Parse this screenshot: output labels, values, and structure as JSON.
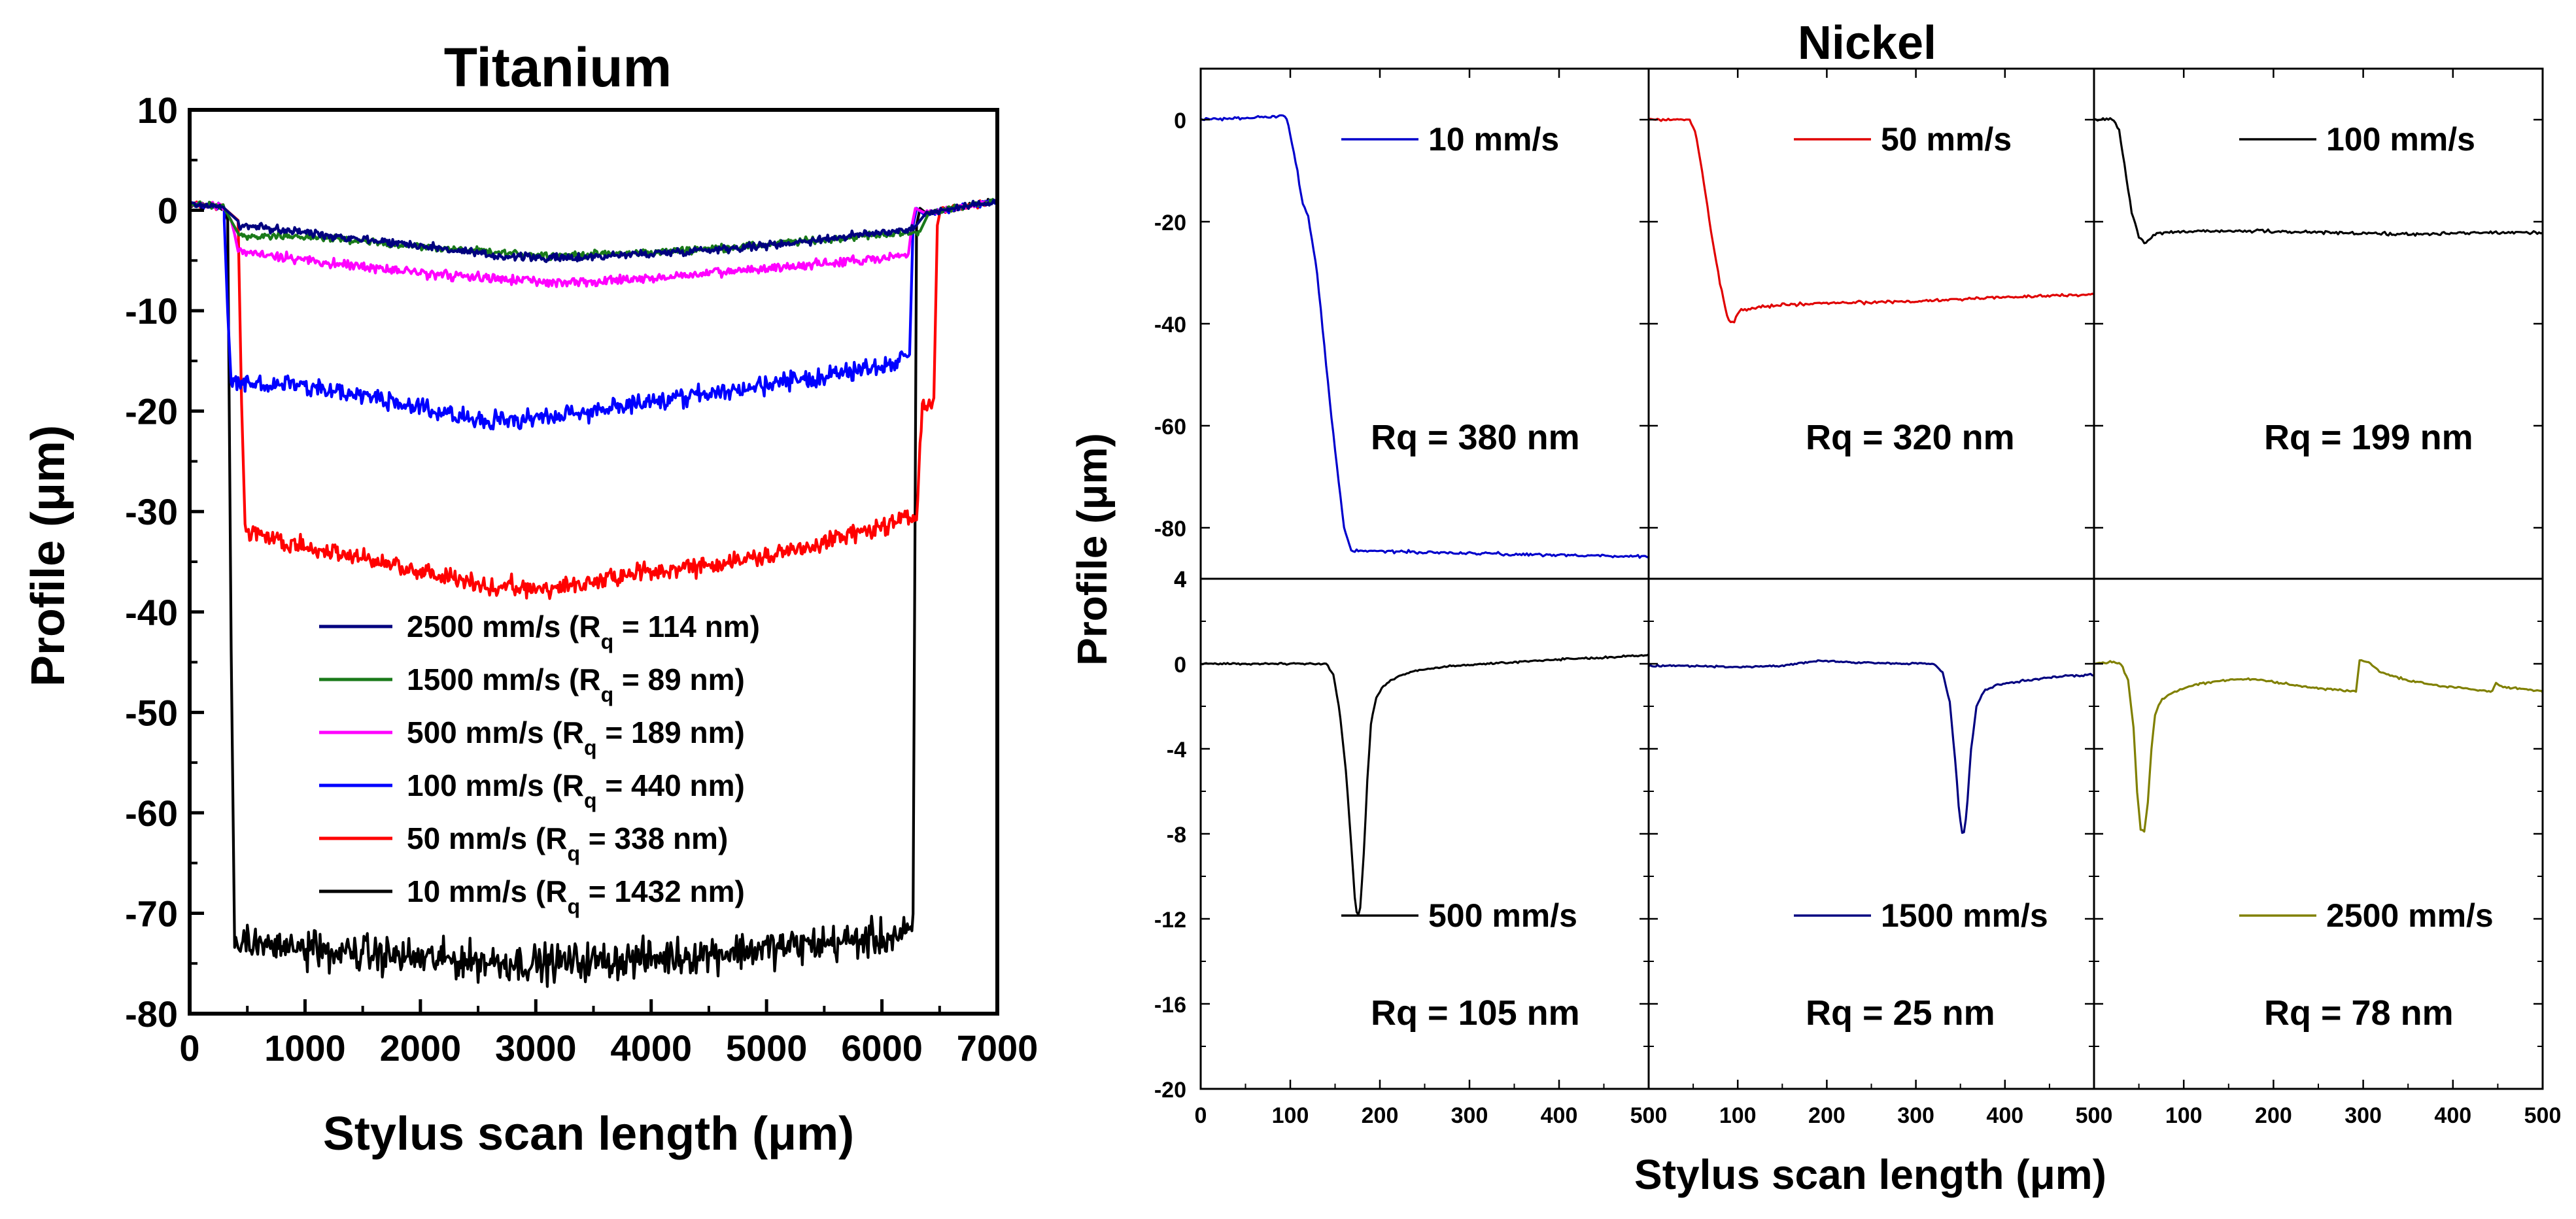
{
  "chart_data": [
    {
      "type": "line",
      "title": "Titanium",
      "xlabel": "Stylus scan length (μm)",
      "ylabel": "Profile (μm)",
      "xlim": [
        0,
        7000
      ],
      "ylim": [
        -80,
        10
      ],
      "xticks": [
        "0",
        "1000",
        "2000",
        "3000",
        "4000",
        "5000",
        "6000",
        "7000"
      ],
      "yticks": [
        "10",
        "0",
        "-10",
        "-20",
        "-30",
        "-40",
        "-50",
        "-60",
        "-70",
        "-80"
      ],
      "legend": "center",
      "series": [
        {
          "name": "2500 mm/s (R_q = 114 nm)",
          "label": "2500 mm/s",
          "rq": "114 nm",
          "color": "#00007f",
          "edge": [
            420,
            6280
          ],
          "shape": [
            [
              0,
              0.5
            ],
            [
              300,
              0.0
            ],
            [
              380,
              -1.5
            ],
            [
              420,
              -1.5
            ],
            [
              1000,
              -2.2
            ],
            [
              2000,
              -3.5
            ],
            [
              2600,
              -4.5
            ],
            [
              3200,
              -4.8
            ],
            [
              4000,
              -4.3
            ],
            [
              5000,
              -3.5
            ],
            [
              6000,
              -2.2
            ],
            [
              6280,
              -1.8
            ],
            [
              6320,
              0.5
            ],
            [
              7000,
              1.2
            ]
          ],
          "noise": 0.35
        },
        {
          "name": "1500 mm/s (R_q = 89 nm)",
          "label": "1500 mm/s",
          "rq": "89 nm",
          "color": "#1a7a1a",
          "edge": [
            420,
            6330
          ],
          "shape": [
            [
              0,
              0.3
            ],
            [
              330,
              -0.2
            ],
            [
              380,
              -2.0
            ],
            [
              430,
              -2.5
            ],
            [
              1000,
              -2.6
            ],
            [
              2000,
              -3.6
            ],
            [
              2600,
              -4.2
            ],
            [
              3200,
              -4.5
            ],
            [
              4000,
              -4.2
            ],
            [
              5000,
              -3.4
            ],
            [
              6000,
              -2.4
            ],
            [
              6330,
              -2.2
            ],
            [
              6380,
              0.2
            ],
            [
              7000,
              1.0
            ]
          ],
          "noise": 0.3
        },
        {
          "name": "500 mm/s (R_q = 189 nm)",
          "label": "500 mm/s",
          "rq": "189 nm",
          "color": "#ff00ff",
          "edge": [
            420,
            6230
          ],
          "shape": [
            [
              420,
              -4.0
            ],
            [
              1000,
              -5.0
            ],
            [
              2000,
              -6.2
            ],
            [
              2600,
              -6.8
            ],
            [
              3200,
              -7.2
            ],
            [
              4000,
              -6.8
            ],
            [
              5000,
              -5.8
            ],
            [
              6000,
              -4.8
            ],
            [
              6230,
              -4.5
            ]
          ],
          "noise": 0.4
        },
        {
          "name": "100 mm/s (R_q = 440 nm)",
          "label": "100 mm/s",
          "rq": "440 nm",
          "color": "#0000ff",
          "edge": [
            360,
            6240
          ],
          "shape": [
            [
              360,
              -17.0
            ],
            [
              1000,
              -17.5
            ],
            [
              2000,
              -19.5
            ],
            [
              2600,
              -21.0
            ],
            [
              3200,
              -20.5
            ],
            [
              4000,
              -19.0
            ],
            [
              5000,
              -17.5
            ],
            [
              6000,
              -15.5
            ],
            [
              6240,
              -14.5
            ]
          ],
          "noise": 0.8
        },
        {
          "name": "50 mm/s (R_q = 338 nm)",
          "label": "50 mm/s",
          "rq": "338 nm",
          "color": "#ff0000",
          "edge": [
            480,
            6450
          ],
          "shape": [
            [
              480,
              -32.0
            ],
            [
              1000,
              -33.5
            ],
            [
              2000,
              -36.0
            ],
            [
              2600,
              -37.5
            ],
            [
              3200,
              -37.5
            ],
            [
              4000,
              -36.0
            ],
            [
              5000,
              -34.5
            ],
            [
              6000,
              -31.5
            ],
            [
              6300,
              -30.5
            ],
            [
              6350,
              -19.0
            ],
            [
              6450,
              -19.0
            ]
          ],
          "noise": 0.8
        },
        {
          "name": "10 mm/s (R_q = 1432 nm)",
          "label": "10 mm/s",
          "rq": "1432 nm",
          "color": "#000000",
          "edge": [
            390,
            6270
          ],
          "shape": [
            [
              390,
              -73.0
            ],
            [
              1000,
              -73.5
            ],
            [
              2000,
              -74.5
            ],
            [
              3000,
              -75.0
            ],
            [
              4000,
              -74.5
            ],
            [
              5000,
              -73.5
            ],
            [
              6000,
              -72.5
            ],
            [
              6270,
              -72.0
            ]
          ],
          "noise": 1.6
        }
      ]
    },
    {
      "type": "line",
      "title": "Nickel",
      "xlabel": "Stylus scan length (μm)",
      "ylabel": "Profile (μm)",
      "rows": [
        {
          "ylim": [
            -90,
            10
          ],
          "yticks": [
            "0",
            "-20",
            "-40",
            "-60",
            "-80"
          ]
        },
        {
          "ylim": [
            -20,
            4
          ],
          "yticks": [
            "4",
            "0",
            "-4",
            "-8",
            "-12",
            "-16",
            "-20"
          ]
        }
      ],
      "xlim": [
        0,
        500
      ],
      "xticks": [
        "0",
        "100",
        "200",
        "300",
        "400",
        "500"
      ],
      "panels": [
        {
          "label": "10 mm/s",
          "rq": "Rq = 380 nm",
          "color": "#0000cc",
          "row": 0,
          "col": 0,
          "points": [
            [
              0,
              0
            ],
            [
              50,
              0.3
            ],
            [
              90,
              0.8
            ],
            [
              96,
              0.5
            ],
            [
              100,
              -3
            ],
            [
              108,
              -10
            ],
            [
              113,
              -16
            ],
            [
              120,
              -19
            ],
            [
              130,
              -30
            ],
            [
              140,
              -48
            ],
            [
              150,
              -65
            ],
            [
              160,
              -80
            ],
            [
              168,
              -84.5
            ],
            [
              180,
              -84.5
            ],
            [
              250,
              -84.8
            ],
            [
              350,
              -85.2
            ],
            [
              450,
              -85.5
            ],
            [
              500,
              -85.6
            ]
          ]
        },
        {
          "label": "50 mm/s",
          "rq": "Rq = 320 nm",
          "color": "#e00000",
          "row": 0,
          "col": 1,
          "points": [
            [
              0,
              0
            ],
            [
              45,
              0
            ],
            [
              52,
              -2
            ],
            [
              60,
              -10
            ],
            [
              70,
              -22
            ],
            [
              80,
              -32
            ],
            [
              88,
              -38.5
            ],
            [
              92,
              -39.8
            ],
            [
              96,
              -39.5
            ],
            [
              102,
              -37.5
            ],
            [
              120,
              -36.8
            ],
            [
              150,
              -36.3
            ],
            [
              200,
              -36.0
            ],
            [
              250,
              -35.8
            ],
            [
              300,
              -35.6
            ],
            [
              350,
              -35.2
            ],
            [
              400,
              -34.8
            ],
            [
              450,
              -34.5
            ],
            [
              500,
              -34.2
            ]
          ]
        },
        {
          "label": "100 mm/s",
          "rq": "Rq = 199 nm",
          "color": "#000000",
          "row": 0,
          "col": 2,
          "points": [
            [
              0,
              0
            ],
            [
              22,
              0
            ],
            [
              28,
              -2
            ],
            [
              35,
              -10
            ],
            [
              42,
              -18
            ],
            [
              50,
              -23
            ],
            [
              56,
              -24.3
            ],
            [
              62,
              -23.5
            ],
            [
              70,
              -22.2
            ],
            [
              100,
              -22.0
            ],
            [
              150,
              -21.8
            ],
            [
              200,
              -21.9
            ],
            [
              250,
              -22.1
            ],
            [
              300,
              -22.3
            ],
            [
              350,
              -22.4
            ],
            [
              400,
              -22.3
            ],
            [
              450,
              -22.2
            ],
            [
              500,
              -22.1
            ]
          ]
        },
        {
          "label": "500 mm/s",
          "rq": "Rq = 105 nm",
          "color": "#000000",
          "row": 1,
          "col": 0,
          "points": [
            [
              0,
              0
            ],
            [
              50,
              0
            ],
            [
              140,
              0
            ],
            [
              148,
              -0.5
            ],
            [
              155,
              -2.2
            ],
            [
              162,
              -5.0
            ],
            [
              168,
              -8.5
            ],
            [
              172,
              -11.0
            ],
            [
              175,
              -12.0
            ],
            [
              178,
              -11.5
            ],
            [
              182,
              -9.0
            ],
            [
              186,
              -5.5
            ],
            [
              190,
              -2.8
            ],
            [
              196,
              -1.6
            ],
            [
              205,
              -1.0
            ],
            [
              220,
              -0.6
            ],
            [
              240,
              -0.3
            ],
            [
              280,
              -0.1
            ],
            [
              320,
              0.0
            ],
            [
              360,
              0.1
            ],
            [
              400,
              0.2
            ],
            [
              450,
              0.3
            ],
            [
              500,
              0.4
            ]
          ]
        },
        {
          "label": "1500 mm/s",
          "rq": "Rq = 25 nm",
          "color": "#000080",
          "row": 1,
          "col": 1,
          "points": [
            [
              0,
              -0.1
            ],
            [
              50,
              -0.1
            ],
            [
              100,
              -0.15
            ],
            [
              150,
              -0.1
            ],
            [
              190,
              0.15
            ],
            [
              240,
              0.05
            ],
            [
              300,
              0.0
            ],
            [
              320,
              0.0
            ],
            [
              330,
              -0.4
            ],
            [
              338,
              -1.8
            ],
            [
              344,
              -4.5
            ],
            [
              349,
              -7.2
            ],
            [
              353,
              -8.2
            ],
            [
              357,
              -7.0
            ],
            [
              362,
              -4.0
            ],
            [
              368,
              -2.0
            ],
            [
              376,
              -1.3
            ],
            [
              390,
              -1.0
            ],
            [
              420,
              -0.8
            ],
            [
              450,
              -0.65
            ],
            [
              480,
              -0.55
            ],
            [
              500,
              -0.5
            ]
          ]
        },
        {
          "label": "2500 mm/s",
          "rq": "Rq = 78 nm",
          "color": "#808000",
          "row": 1,
          "col": 2,
          "points": [
            [
              0,
              0
            ],
            [
              20,
              0.1
            ],
            [
              30,
              0.0
            ],
            [
              38,
              -0.8
            ],
            [
              44,
              -3.0
            ],
            [
              48,
              -6.0
            ],
            [
              52,
              -7.8
            ],
            [
              56,
              -7.9
            ],
            [
              60,
              -6.5
            ],
            [
              64,
              -4.0
            ],
            [
              68,
              -2.4
            ],
            [
              75,
              -1.7
            ],
            [
              90,
              -1.3
            ],
            [
              110,
              -1.0
            ],
            [
              140,
              -0.8
            ],
            [
              170,
              -0.7
            ],
            [
              200,
              -0.85
            ],
            [
              230,
              -1.05
            ],
            [
              260,
              -1.2
            ],
            [
              292,
              -1.3
            ],
            [
              296,
              0.2
            ],
            [
              305,
              0.1
            ],
            [
              320,
              -0.4
            ],
            [
              350,
              -0.8
            ],
            [
              380,
              -1.0
            ],
            [
              420,
              -1.2
            ],
            [
              443,
              -1.3
            ],
            [
              448,
              -0.9
            ],
            [
              455,
              -1.1
            ],
            [
              480,
              -1.2
            ],
            [
              500,
              -1.3
            ]
          ]
        }
      ]
    }
  ]
}
